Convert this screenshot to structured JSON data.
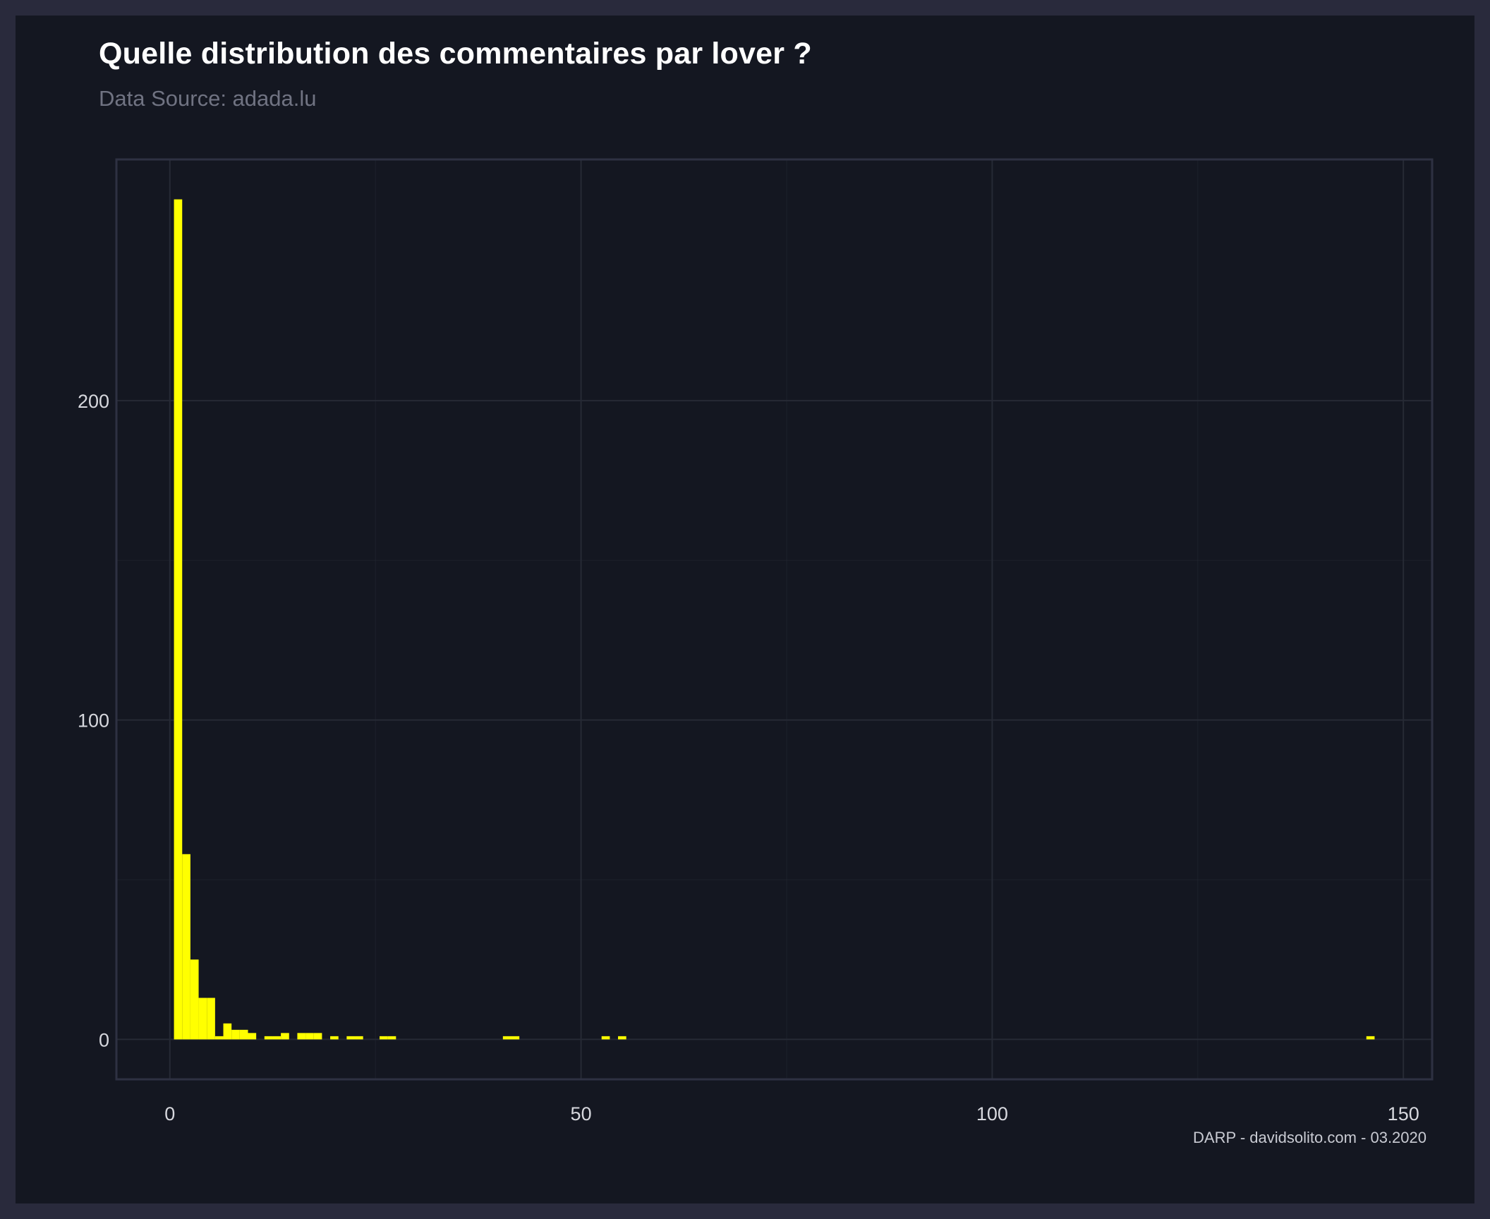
{
  "title": "Quelle distribution des commentaires par lover ?",
  "subtitle": "Data Source: adada.lu",
  "caption": "DARP - davidsolito.com - 03.2020",
  "colors": {
    "outer_background": "#292a3c",
    "panel_background": "#141721",
    "grid": "#262a35",
    "panel_border": "#2e3142",
    "bar_fill": "#ffff00"
  },
  "chart_data": {
    "type": "bar",
    "subtype": "histogram",
    "xlabel": "",
    "ylabel": "",
    "xlim": [
      -6.5,
      153.5
    ],
    "ylim": [
      -12.5,
      275.5
    ],
    "x_ticks": [
      0,
      50,
      100,
      150
    ],
    "x_tick_labels": [
      "0",
      "50",
      "100",
      "150"
    ],
    "y_ticks": [
      0,
      100,
      200
    ],
    "y_tick_labels": [
      "0",
      "100",
      "200"
    ],
    "grid": true,
    "legend": "none",
    "bin_width": 1,
    "bins": [
      {
        "x0": 0.5,
        "x1": 1.5,
        "count": 263
      },
      {
        "x0": 1.5,
        "x1": 2.5,
        "count": 58
      },
      {
        "x0": 2.5,
        "x1": 3.5,
        "count": 25
      },
      {
        "x0": 3.5,
        "x1": 4.5,
        "count": 13
      },
      {
        "x0": 4.5,
        "x1": 5.5,
        "count": 13
      },
      {
        "x0": 5.5,
        "x1": 6.5,
        "count": 1
      },
      {
        "x0": 6.5,
        "x1": 7.5,
        "count": 5
      },
      {
        "x0": 7.5,
        "x1": 8.5,
        "count": 3
      },
      {
        "x0": 8.5,
        "x1": 9.5,
        "count": 3
      },
      {
        "x0": 9.5,
        "x1": 10.5,
        "count": 2
      },
      {
        "x0": 11.5,
        "x1": 12.5,
        "count": 1
      },
      {
        "x0": 12.5,
        "x1": 13.5,
        "count": 1
      },
      {
        "x0": 13.5,
        "x1": 14.5,
        "count": 2
      },
      {
        "x0": 15.5,
        "x1": 16.5,
        "count": 2
      },
      {
        "x0": 16.5,
        "x1": 17.5,
        "count": 2
      },
      {
        "x0": 17.5,
        "x1": 18.5,
        "count": 2
      },
      {
        "x0": 19.5,
        "x1": 20.5,
        "count": 1
      },
      {
        "x0": 21.5,
        "x1": 22.5,
        "count": 1
      },
      {
        "x0": 22.5,
        "x1": 23.5,
        "count": 1
      },
      {
        "x0": 25.5,
        "x1": 26.5,
        "count": 1
      },
      {
        "x0": 26.5,
        "x1": 27.5,
        "count": 1
      },
      {
        "x0": 40.5,
        "x1": 41.5,
        "count": 1
      },
      {
        "x0": 41.5,
        "x1": 42.5,
        "count": 1
      },
      {
        "x0": 52.5,
        "x1": 53.5,
        "count": 1
      },
      {
        "x0": 54.5,
        "x1": 55.5,
        "count": 1
      },
      {
        "x0": 145.5,
        "x1": 146.5,
        "count": 1
      }
    ]
  }
}
